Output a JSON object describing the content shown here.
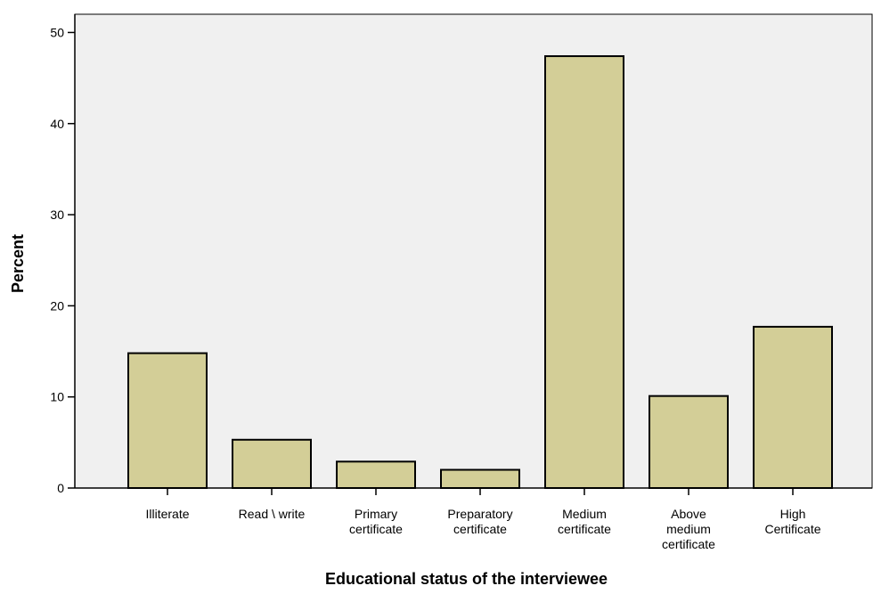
{
  "colors": {
    "plot_background": "#f0f0f0",
    "bar_fill": "#d3ce97",
    "bar_stroke": "#000000"
  },
  "chart_data": {
    "type": "bar",
    "title": "",
    "xlabel": "Educational status of the interviewee",
    "ylabel": "Percent",
    "ylim": [
      0,
      52
    ],
    "yticks": [
      0,
      10,
      20,
      30,
      40,
      50
    ],
    "grid": false,
    "categories": [
      [
        "Illiterate"
      ],
      [
        "Read \\ write"
      ],
      [
        "Primary",
        "certificate"
      ],
      [
        "Preparatory",
        "certificate"
      ],
      [
        "Medium",
        "certificate"
      ],
      [
        "Above",
        "medium",
        "certificate"
      ],
      [
        "High",
        "Certificate"
      ]
    ],
    "values": [
      14.8,
      5.3,
      2.9,
      2.0,
      47.4,
      10.1,
      17.7
    ]
  }
}
